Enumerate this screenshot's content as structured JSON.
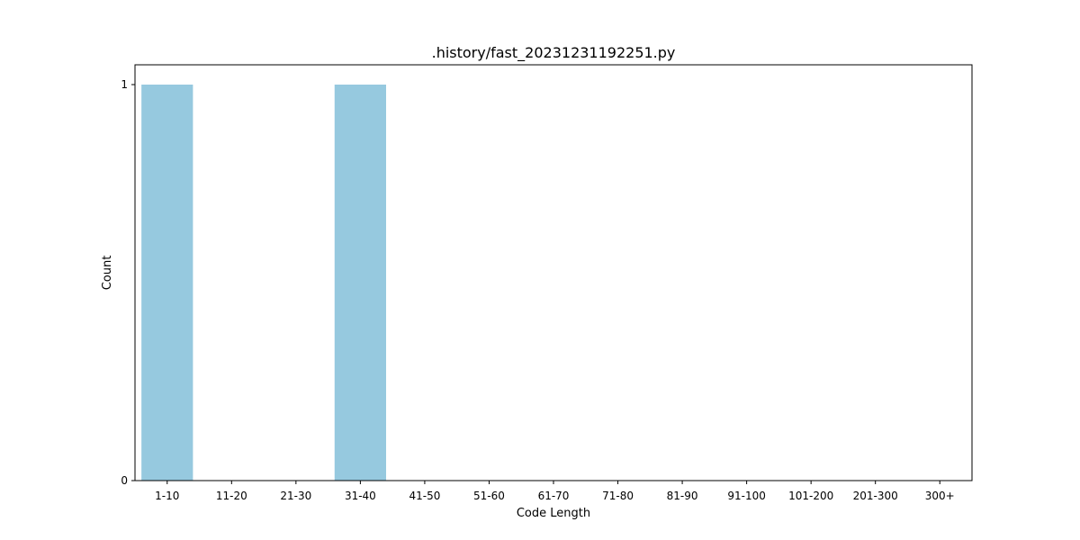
{
  "chart_data": {
    "type": "bar",
    "title": ".history/fast_20231231192251.py",
    "xlabel": "Code Length",
    "ylabel": "Count",
    "categories": [
      "1-10",
      "11-20",
      "21-30",
      "31-40",
      "41-50",
      "51-60",
      "61-70",
      "71-80",
      "81-90",
      "91-100",
      "101-200",
      "201-300",
      "300+"
    ],
    "values": [
      1,
      0,
      0,
      1,
      0,
      0,
      0,
      0,
      0,
      0,
      0,
      0,
      0
    ],
    "ylim": [
      0,
      1.05
    ],
    "yticks": [
      0,
      1
    ],
    "grid": false,
    "legend": "none",
    "bar_color": "#96c9df"
  }
}
